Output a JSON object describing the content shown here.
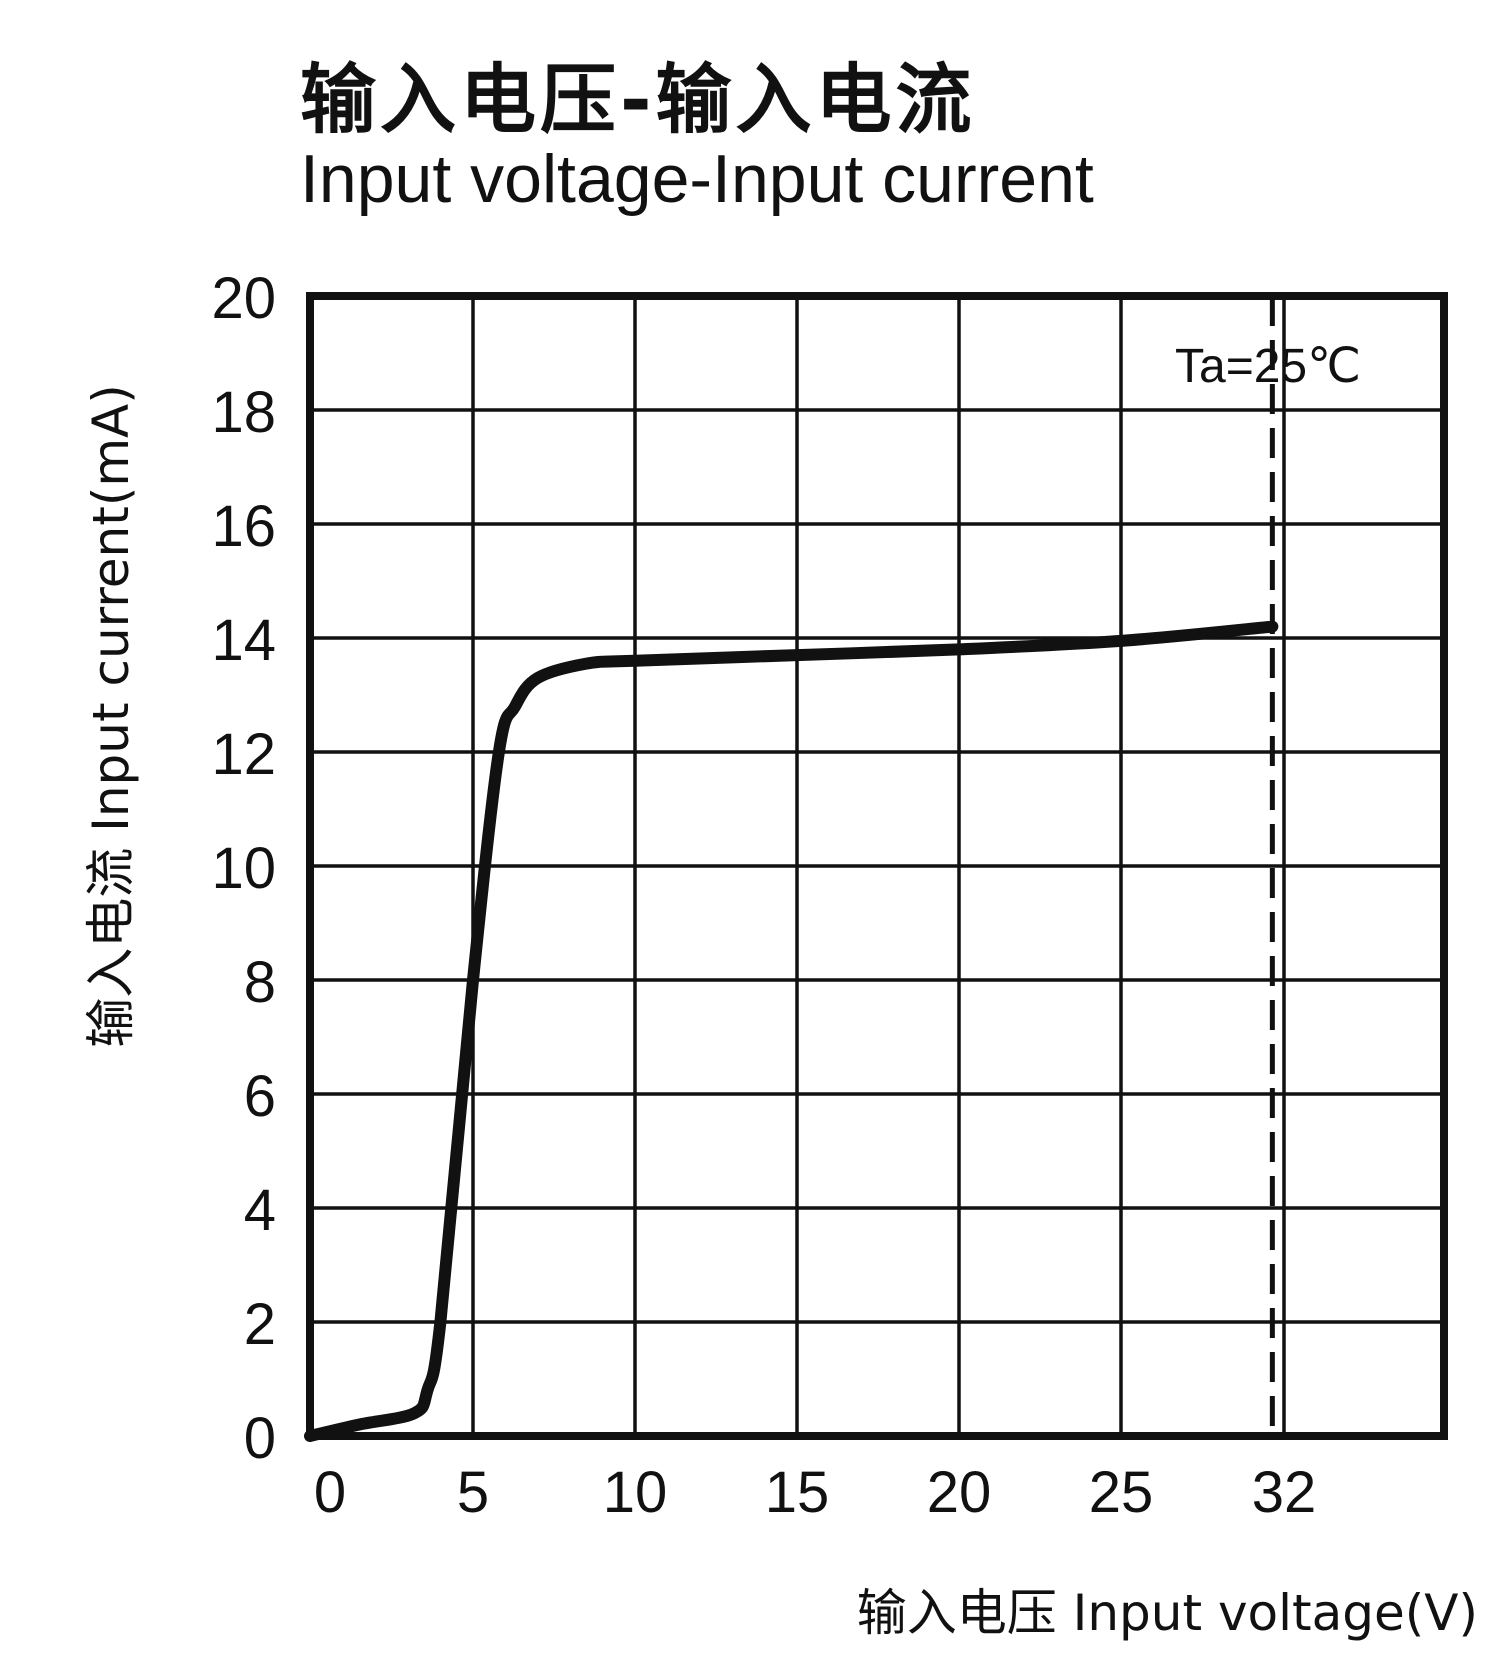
{
  "chart_data": {
    "type": "line",
    "title": "输入电压-输入电流",
    "subtitle": "Input voltage-Input current",
    "xlabel": "输入电压 Input voltage(V)",
    "ylabel": "输入电流 Input current(mA)",
    "x_ticks": [
      "0",
      "5",
      "10",
      "15",
      "20",
      "25",
      "32"
    ],
    "y_ticks": [
      "0",
      "2",
      "4",
      "6",
      "8",
      "10",
      "12",
      "14",
      "16",
      "18",
      "20"
    ],
    "ylim": [
      0,
      20
    ],
    "grid": true,
    "annotation": "Ta=25℃",
    "reference_line": {
      "x": 31.5,
      "style": "dashed"
    },
    "series": [
      {
        "x": [
          0,
          1.5,
          3.2,
          3.6,
          4.0,
          5.0,
          5.8,
          6.3,
          7.0,
          8.5,
          10,
          15,
          20,
          25,
          31.5
        ],
        "y": [
          0,
          0.2,
          0.4,
          0.8,
          2.0,
          8.0,
          12.0,
          12.8,
          13.3,
          13.55,
          13.6,
          13.7,
          13.8,
          13.95,
          14.2
        ]
      }
    ]
  }
}
